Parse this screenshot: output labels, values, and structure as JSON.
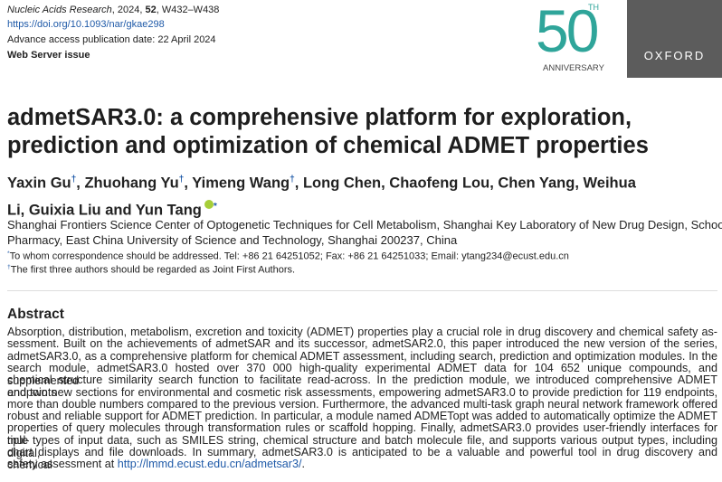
{
  "header": {
    "journal": "Nucleic Acids Research",
    "year": "2024, ",
    "volume": "52",
    "pages": ", W432–W438",
    "doi": "https://doi.org/10.1093/nar/gkae298",
    "advance": "Advance access publication date: 22 April 2024",
    "issue": "Web Server issue"
  },
  "logo": {
    "number": "50",
    "suffix": "TH",
    "caption": "ANNIVERSARY",
    "publisher": "OXFORD"
  },
  "title": [
    "admetSAR3.0: a comprehensive platform for exploration,",
    "prediction and optimization of chemical ADMET properties"
  ],
  "authors": [
    {
      "name": "Yaxin Gu",
      "mark": "†",
      "sep": ", "
    },
    {
      "name": "Zhuohang Yu",
      "mark": "†",
      "sep": ", "
    },
    {
      "name": "Yimeng Wang",
      "mark": "†",
      "sep": ", "
    },
    {
      "name": "Long Chen",
      "sep": ", "
    },
    {
      "name": "Chaofeng Lou",
      "sep": ", "
    },
    {
      "name": "Chen Yang",
      "sep": ", "
    },
    {
      "name": "Weihua Li",
      "sep": ", "
    },
    {
      "name": "Guixia Liu",
      "sep": " and "
    },
    {
      "name": "Yun Tang",
      "mark": "*"
    }
  ],
  "affiliation": [
    "Shanghai Frontiers Science Center of Optogenetic Techniques for Cell Metabolism, Shanghai Key Laboratory of New Drug Design, School of",
    "Pharmacy, East China University of Science and Technology, Shanghai 200237, China"
  ],
  "correspondence": {
    "mark": "*",
    "text": "To whom correspondence should be addressed. Tel: +86 21 64251052; Fax: +86 21 64251033; Email: ytang234@ecust.edu.cn"
  },
  "note": {
    "mark": "†",
    "text": "The first three authors should be regarded as Joint First Authors."
  },
  "abstract": {
    "heading": "Abstract",
    "lines": [
      "Absorption, distribution, metabolism, excretion and toxicity (ADMET) properties play a crucial role in drug discovery and chemical safety as-",
      "sessment. Built on the achievements of admetSAR and its successor, admetSAR2.0, this paper introduced the new version of the series,",
      "admetSAR3.0, as a comprehensive platform for chemical ADMET assessment, including search, prediction and optimization modules. In the",
      "search module, admetSAR3.0 hosted over 370 000 high-quality experimental ADMET data for 104 652 unique compounds, and supplemented",
      "chemical structure similarity search function to facilitate read-across. In the prediction module, we introduced comprehensive ADMET endpoints",
      "and two new sections for environmental and cosmetic risk assessments, empowering admetSAR3.0 to provide prediction for 119 endpoints,",
      "more than double numbers compared to the previous version. Furthermore, the advanced multi-task graph neural network framework offered",
      "robust and reliable support for ADMET prediction. In particular, a module named ADMETopt was added to automatically optimize the ADMET",
      "properties of query molecules through transformation rules or scaffold hopping. Finally, admetSAR3.0 provides user-friendly interfaces for mul-",
      "tiple types of input data, such as SMILES string, chemical structure and batch molecule file, and supports various output types, including digital,",
      "chart displays and file downloads. In summary, admetSAR3.0 is anticipated to be a valuable and powerful tool in drug discovery and chemical"
    ],
    "last": {
      "text": "safety assessment at ",
      "link": "http://lmmd.ecust.edu.cn/admetsar3/",
      "end": "."
    }
  }
}
